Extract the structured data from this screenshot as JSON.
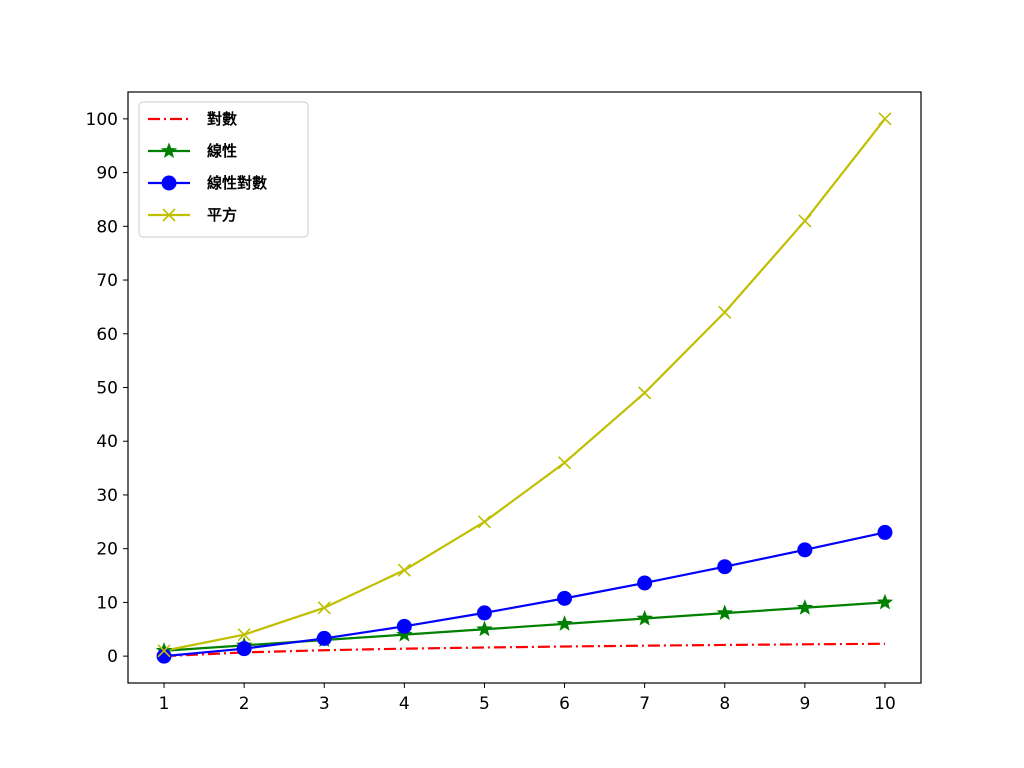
{
  "chart_data": {
    "type": "line",
    "title": "",
    "xlabel": "",
    "ylabel": "",
    "x": [
      1,
      2,
      3,
      4,
      5,
      6,
      7,
      8,
      9,
      10
    ],
    "xlim": [
      0.55,
      10.45
    ],
    "ylim": [
      -5,
      105
    ],
    "xticks": [
      1,
      2,
      3,
      4,
      5,
      6,
      7,
      8,
      9,
      10
    ],
    "yticks": [
      0,
      10,
      20,
      30,
      40,
      50,
      60,
      70,
      80,
      90,
      100
    ],
    "grid": false,
    "legend_position": "top-left",
    "series": [
      {
        "name": "對數",
        "color": "#ff0000",
        "linestyle": "dashdot",
        "marker": "none",
        "values": [
          0,
          0.69,
          1.1,
          1.39,
          1.61,
          1.79,
          1.95,
          2.08,
          2.2,
          2.3
        ]
      },
      {
        "name": "線性",
        "color": "#008000",
        "linestyle": "solid",
        "marker": "star",
        "values": [
          1,
          2,
          3,
          4,
          5,
          6,
          7,
          8,
          9,
          10
        ]
      },
      {
        "name": "線性對數",
        "color": "#0000ff",
        "linestyle": "solid",
        "marker": "circle",
        "values": [
          0,
          1.39,
          3.3,
          5.55,
          8.05,
          10.75,
          13.62,
          16.64,
          19.78,
          23.03
        ]
      },
      {
        "name": "平方",
        "color": "#bfbf00",
        "linestyle": "solid",
        "marker": "x",
        "values": [
          1,
          4,
          9,
          16,
          25,
          36,
          49,
          64,
          81,
          100
        ]
      }
    ]
  }
}
